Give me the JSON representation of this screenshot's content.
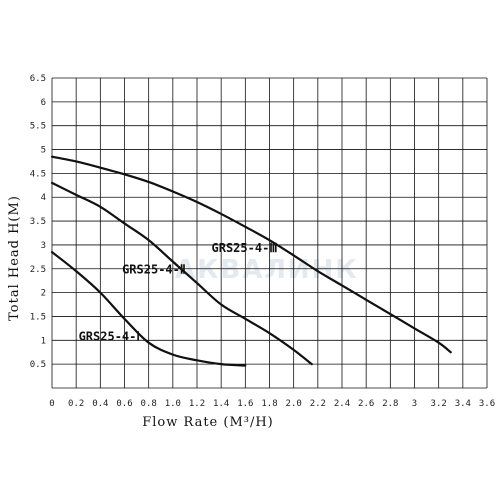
{
  "chart_data": {
    "type": "line",
    "xlabel": "Flow Rate (M³/H)",
    "ylabel": "Total Head H(M)",
    "xlim": [
      0,
      3.6
    ],
    "ylim": [
      0,
      6.5
    ],
    "x_ticks": [
      "0",
      "0.2",
      "0.4",
      "0.6",
      "0.8",
      "1.0",
      "1.2",
      "1.4",
      "1.6",
      "1.8",
      "2.0",
      "2.2",
      "2.4",
      "2.6",
      "2.8",
      "3",
      "3.2",
      "3.4",
      "3.6"
    ],
    "y_ticks": [
      "0.5",
      "1",
      "1.5",
      "2",
      "2.5",
      "3",
      "3.5",
      "4",
      "4.5",
      "5",
      "5.5",
      "6",
      "6.5"
    ],
    "grid": true,
    "series": [
      {
        "name": "GRS25-4-Ⅰ",
        "x": [
          0,
          0.2,
          0.4,
          0.6,
          0.8,
          1.0,
          1.2,
          1.4,
          1.6
        ],
        "y": [
          2.85,
          2.45,
          2.0,
          1.45,
          0.95,
          0.7,
          0.58,
          0.5,
          0.47
        ]
      },
      {
        "name": "GRS25-4-Ⅱ",
        "x": [
          0,
          0.2,
          0.4,
          0.6,
          0.8,
          1.0,
          1.2,
          1.4,
          1.6,
          1.8,
          2.0,
          2.15
        ],
        "y": [
          4.3,
          4.05,
          3.8,
          3.45,
          3.1,
          2.65,
          2.2,
          1.75,
          1.45,
          1.15,
          0.8,
          0.5
        ]
      },
      {
        "name": "GRS25-4-Ⅲ",
        "x": [
          0,
          0.2,
          0.4,
          0.6,
          0.8,
          1.0,
          1.2,
          1.4,
          1.6,
          1.8,
          2.0,
          2.2,
          2.4,
          2.6,
          2.8,
          3.0,
          3.2,
          3.3
        ],
        "y": [
          4.85,
          4.75,
          4.62,
          4.48,
          4.32,
          4.12,
          3.9,
          3.65,
          3.38,
          3.1,
          2.78,
          2.45,
          2.15,
          1.85,
          1.55,
          1.25,
          0.95,
          0.75
        ]
      }
    ],
    "watermark": "АКВАЛИНК",
    "colors": {
      "curve": "#111111",
      "grid": "#111111",
      "watermark": "#e3e9ef"
    }
  }
}
